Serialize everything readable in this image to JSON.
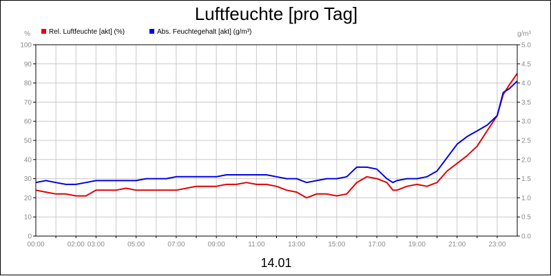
{
  "chart_data": {
    "type": "line",
    "title": "Luftfeuchte [pro Tag]",
    "date_label": "14.01",
    "y_left_unit": "%",
    "y_right_unit": "g/m³",
    "ylim_left": [
      0,
      100
    ],
    "ylim_right": [
      0,
      5
    ],
    "y_left_ticks": [
      "0",
      "10",
      "20",
      "30",
      "40",
      "50",
      "60",
      "70",
      "80",
      "90",
      "100"
    ],
    "y_right_ticks": [
      "0.0",
      "0.5",
      "1.0",
      "1.5",
      "2.0",
      "2.5",
      "3.0",
      "3.5",
      "4.0",
      "4.5",
      "5.0"
    ],
    "x_range_hours": [
      0,
      24
    ],
    "x_ticks": [
      {
        "label": "00:00",
        "hour": 0
      },
      {
        "label": "02:00",
        "hour": 2
      },
      {
        "label": "03:00",
        "hour": 3
      },
      {
        "label": "05:00",
        "hour": 5
      },
      {
        "label": "07:00",
        "hour": 7
      },
      {
        "label": "09:00",
        "hour": 9
      },
      {
        "label": "11:00",
        "hour": 11
      },
      {
        "label": "13:00",
        "hour": 13
      },
      {
        "label": "15:00",
        "hour": 15
      },
      {
        "label": "17:00",
        "hour": 17
      },
      {
        "label": "19:00",
        "hour": 19
      },
      {
        "label": "21:00",
        "hour": 21
      },
      {
        "label": "23:00",
        "hour": 23
      }
    ],
    "grid": true,
    "legend_position": "top-left",
    "series": [
      {
        "name": "Rel. Luftfeuchte [akt] (%)",
        "color": "#e00000",
        "axis": "left",
        "x": [
          0,
          0.5,
          1,
          1.5,
          2,
          2.5,
          3,
          3.5,
          4,
          4.5,
          5,
          5.5,
          6,
          6.5,
          7,
          7.5,
          8,
          8.5,
          9,
          9.5,
          10,
          10.5,
          11,
          11.5,
          12,
          12.5,
          13,
          13.5,
          14,
          14.5,
          15,
          15.5,
          16,
          16.5,
          17,
          17.5,
          17.8,
          18,
          18.5,
          19,
          19.5,
          20,
          20.5,
          21,
          21.5,
          22,
          22.5,
          23,
          23.3,
          23.6,
          24
        ],
        "y": [
          24,
          23,
          22,
          22,
          21,
          21,
          24,
          24,
          24,
          25,
          24,
          24,
          24,
          24,
          24,
          25,
          26,
          26,
          26,
          27,
          27,
          28,
          27,
          27,
          26,
          24,
          23,
          20,
          22,
          22,
          21,
          22,
          28,
          31,
          30,
          28,
          24,
          24,
          26,
          27,
          26,
          28,
          34,
          38,
          42,
          47,
          55,
          63,
          74,
          79,
          85
        ]
      },
      {
        "name": "Abs. Feuchtegehalt [akt] (g/m³)",
        "color": "#0000e0",
        "axis": "right",
        "x": [
          0,
          0.5,
          1,
          1.5,
          2,
          2.5,
          3,
          3.5,
          4,
          4.5,
          5,
          5.5,
          6,
          6.5,
          7,
          7.5,
          8,
          8.5,
          9,
          9.5,
          10,
          10.5,
          11,
          11.5,
          12,
          12.5,
          13,
          13.5,
          14,
          14.5,
          15,
          15.5,
          16,
          16.5,
          17,
          17.5,
          17.8,
          18,
          18.5,
          19,
          19.5,
          20,
          20.5,
          21,
          21.5,
          22,
          22.5,
          23,
          23.3,
          23.6,
          24
        ],
        "y": [
          1.4,
          1.45,
          1.4,
          1.35,
          1.35,
          1.4,
          1.45,
          1.45,
          1.45,
          1.45,
          1.45,
          1.5,
          1.5,
          1.5,
          1.55,
          1.55,
          1.55,
          1.55,
          1.55,
          1.6,
          1.6,
          1.6,
          1.6,
          1.6,
          1.55,
          1.5,
          1.5,
          1.4,
          1.45,
          1.5,
          1.5,
          1.55,
          1.8,
          1.8,
          1.75,
          1.5,
          1.4,
          1.45,
          1.5,
          1.5,
          1.55,
          1.7,
          2.05,
          2.4,
          2.6,
          2.75,
          2.9,
          3.15,
          3.75,
          3.85,
          4.05
        ]
      }
    ]
  }
}
